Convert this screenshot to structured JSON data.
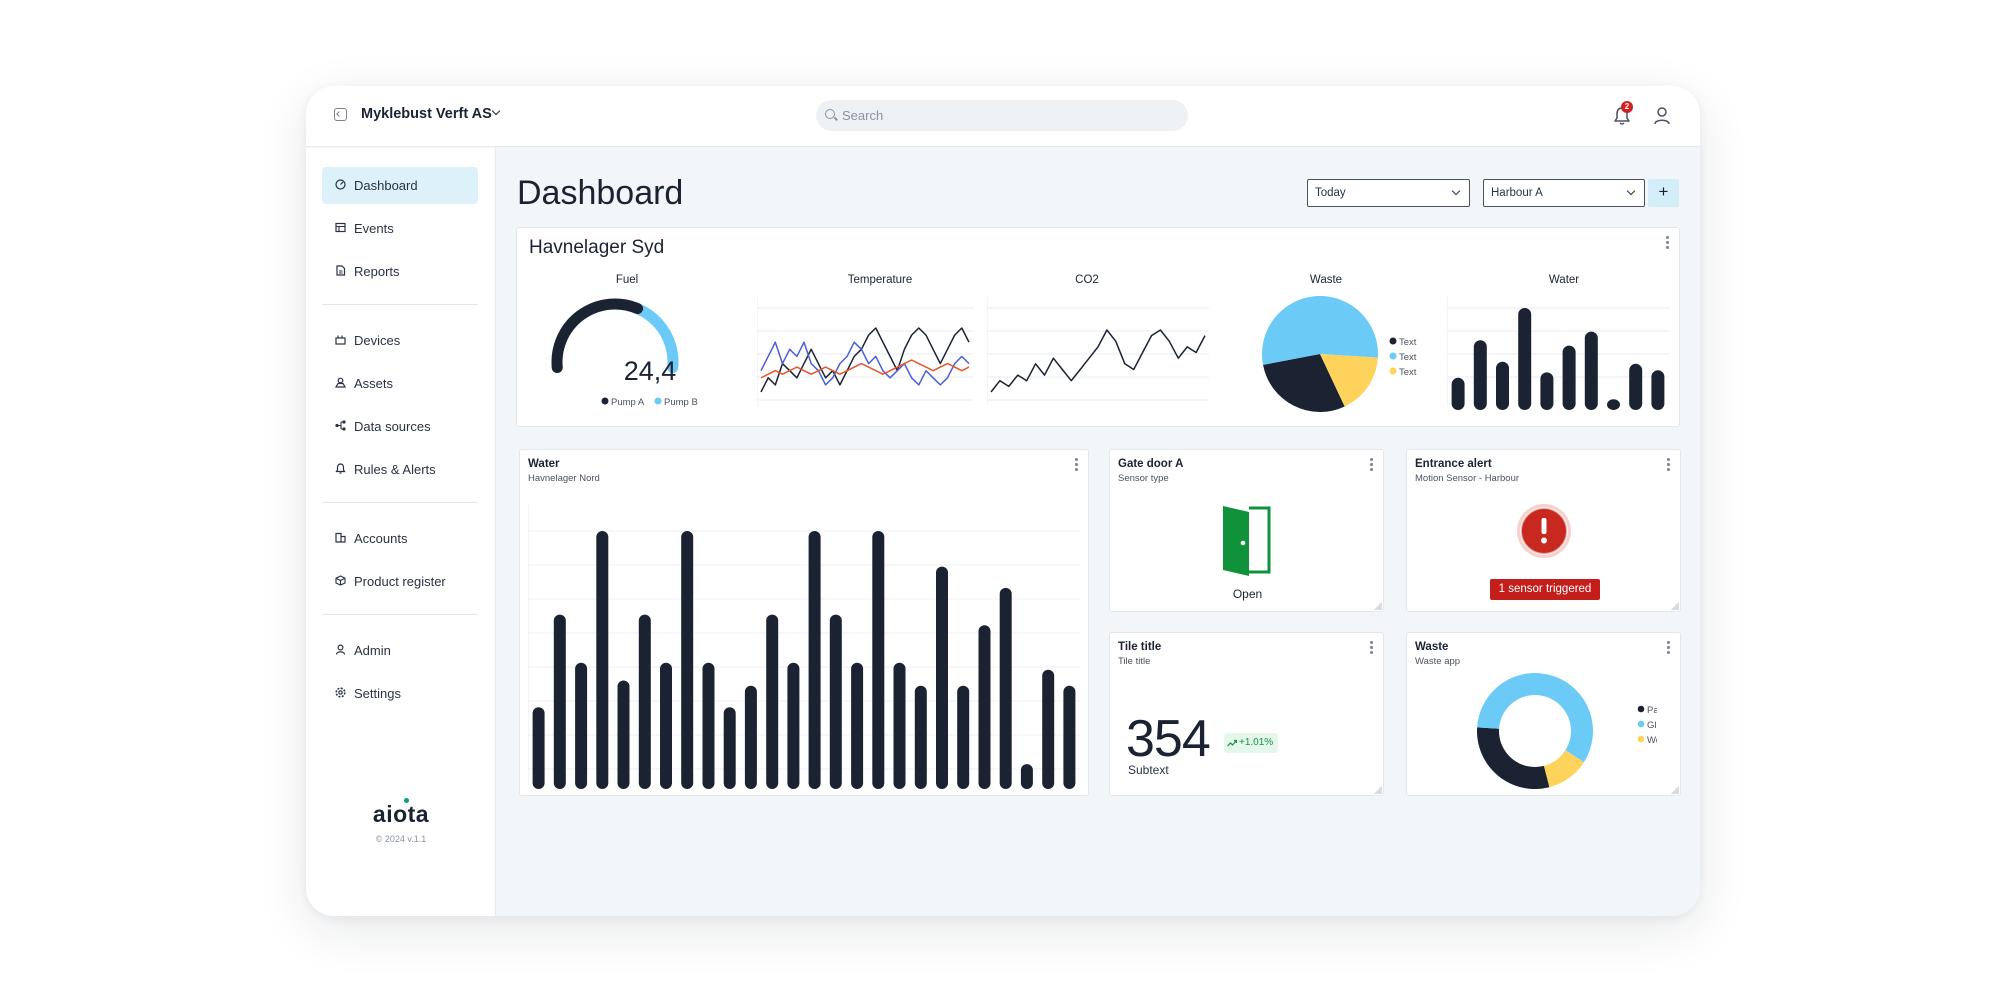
{
  "topbar": {
    "org_name": "Myklebust Verft AS",
    "search_placeholder": "Search",
    "notification_count": "2"
  },
  "sidebar": {
    "items": [
      {
        "label": "Dashboard",
        "icon": "dashboard-icon"
      },
      {
        "label": "Events",
        "icon": "events-icon"
      },
      {
        "label": "Reports",
        "icon": "reports-icon"
      },
      {
        "label": "Devices",
        "icon": "devices-icon"
      },
      {
        "label": "Assets",
        "icon": "assets-icon"
      },
      {
        "label": "Data sources",
        "icon": "data-sources-icon"
      },
      {
        "label": "Rules & Alerts",
        "icon": "bell-icon"
      },
      {
        "label": "Accounts",
        "icon": "accounts-icon"
      },
      {
        "label": "Product register",
        "icon": "box-icon"
      },
      {
        "label": "Admin",
        "icon": "user-icon"
      },
      {
        "label": "Settings",
        "icon": "gear-icon"
      }
    ],
    "logo": "aiota",
    "copyright": "© 2024 v.1.1"
  },
  "main": {
    "title": "Dashboard",
    "filters": {
      "period": "Today",
      "location": "Harbour A"
    },
    "add_label": "+"
  },
  "summary": {
    "title": "Havnelager Syd",
    "fuel": {
      "label": "Fuel",
      "value": "24,4",
      "gauge_fraction_a": 0.62,
      "legend": [
        "Pump A",
        "Pump B"
      ]
    },
    "temperature": {
      "label": "Temperature"
    },
    "co2": {
      "label": "CO2"
    },
    "waste": {
      "label": "Waste",
      "legend": [
        "Text",
        "Text",
        "Text"
      ],
      "slices": [
        0.29,
        0.54,
        0.17
      ]
    },
    "water": {
      "label": "Water",
      "values": [
        3,
        6.5,
        4.5,
        9.5,
        3.5,
        6,
        7.3,
        1,
        4.3,
        3.7
      ]
    }
  },
  "water_card": {
    "title": "Water",
    "subtitle": "Havnelager Nord"
  },
  "gate_card": {
    "title": "Gate door A",
    "subtitle": "Sensor type",
    "status": "Open"
  },
  "alert_card": {
    "title": "Entrance alert",
    "subtitle": "Motion Sensor - Harbour",
    "message": "1 sensor triggered"
  },
  "tile_card": {
    "title": "Tile title",
    "subtitle": "Tile title",
    "value": "354",
    "delta": "+1.01%",
    "subtext": "Subtext"
  },
  "waste_card": {
    "title": "Waste",
    "subtitle": "Waste app",
    "legend": [
      "Paper",
      "Glass",
      "Wood"
    ]
  },
  "colors": {
    "navy": "#1b2333",
    "sky": "#6ccaf7",
    "yellow": "#fdd35c",
    "green": "#10923a",
    "red": "#c8281f",
    "orange": "#e8552a",
    "blue": "#4a5fd8"
  },
  "chart_data": [
    {
      "type": "bar",
      "title": "Water",
      "values": [
        3,
        6.5,
        4.5,
        9.5,
        3.5,
        6,
        7.3,
        1,
        4.3,
        3.7
      ]
    },
    {
      "type": "bar",
      "title": "Water",
      "subtitle": "Havnelager Nord",
      "values": [
        4.6,
        9.8,
        7.1,
        14.5,
        6.1,
        9.8,
        7.1,
        14.5,
        7.1,
        4.6,
        5.8,
        9.8,
        7.1,
        14.5,
        9.8,
        7.1,
        14.5,
        7.1,
        5.8,
        12.5,
        5.8,
        9.2,
        11.3,
        1.4,
        6.7,
        5.8
      ]
    },
    {
      "type": "pie",
      "title": "Waste",
      "legend": [
        "Text",
        "Text",
        "Text"
      ],
      "values": [
        29,
        54,
        17
      ]
    },
    {
      "type": "pie",
      "title": "Waste",
      "subtitle": "Waste app",
      "legend": [
        "Paper",
        "Glass",
        "Wood"
      ],
      "values": [
        30,
        58,
        12
      ]
    },
    {
      "type": "line",
      "title": "CO2",
      "values": [
        1,
        3,
        2,
        4,
        3,
        6,
        4,
        7,
        5,
        3,
        5,
        7,
        9,
        12,
        10,
        6,
        5,
        8,
        11,
        12,
        10,
        7,
        9,
        8,
        11
      ]
    },
    {
      "type": "line",
      "title": "Temperature",
      "series": [
        {
          "values": [
            2,
            4,
            3,
            6,
            5,
            4,
            6,
            8,
            6,
            4,
            5,
            3,
            5,
            7,
            8,
            10,
            11,
            9,
            7,
            5,
            8,
            10,
            11,
            10,
            8,
            6,
            8,
            10,
            11,
            9
          ]
        },
        {
          "values": [
            5,
            7,
            9,
            6,
            8,
            7,
            9,
            6,
            5,
            3,
            4,
            6,
            7,
            9,
            8,
            6,
            7,
            5,
            4,
            5,
            6,
            4,
            3,
            5,
            4,
            3,
            4,
            6,
            7,
            6
          ]
        },
        {
          "values": [
            4,
            4.5,
            5,
            4.5,
            5,
            5.5,
            5,
            4.5,
            5,
            5.5,
            5,
            4.5,
            5,
            5.5,
            6,
            5.5,
            5,
            4.5,
            5,
            5.5,
            6,
            6.5,
            6,
            5.5,
            5,
            5.5,
            6,
            5.5,
            5,
            5.5
          ]
        }
      ]
    }
  ]
}
